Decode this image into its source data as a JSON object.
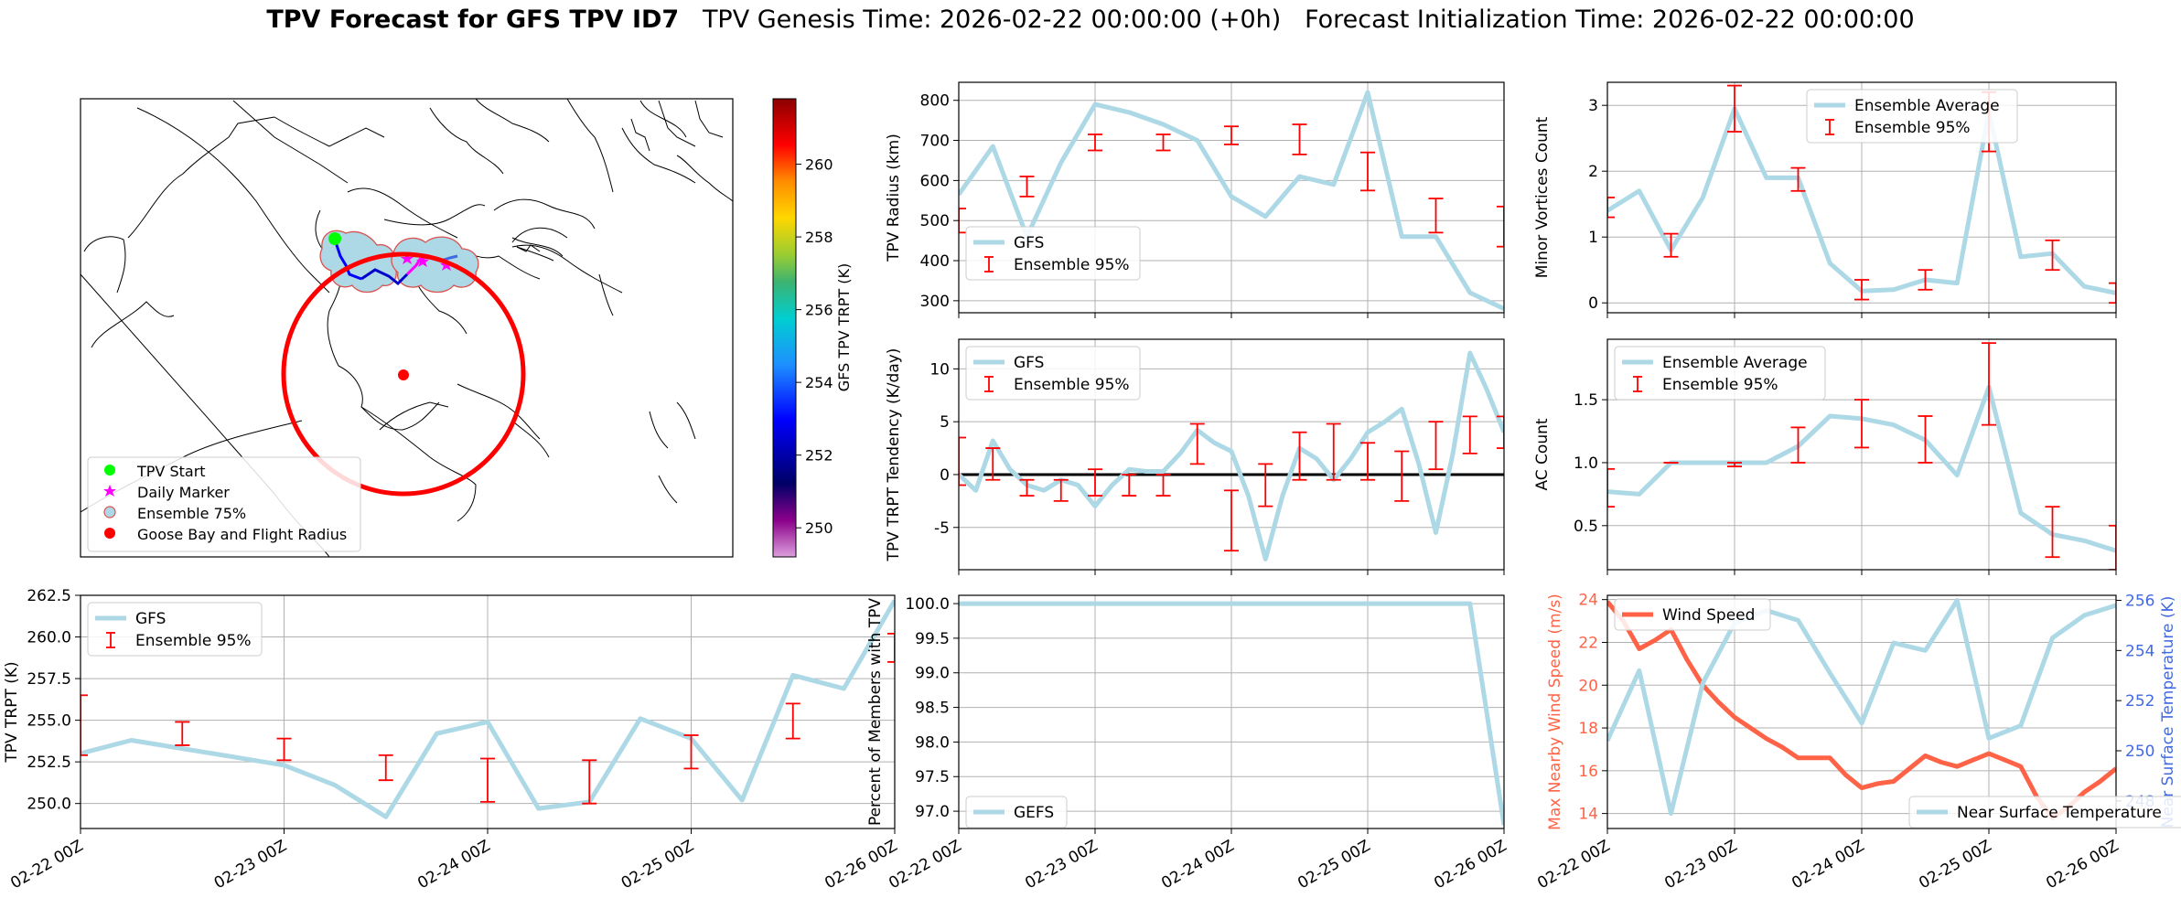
{
  "header": {
    "title_bold": "TPV Forecast for GFS TPV ID7",
    "title_genesis": "TPV Genesis Time: 2026-02-22 00:00:00 (+0h)",
    "title_init": "Forecast Initialization Time: 2026-02-22 00:00:00"
  },
  "colors": {
    "gfs_line": "#add8e6",
    "ensemble_err": "#ff0000",
    "wind_line": "#ff6347",
    "wind_axis": "#ff6347",
    "temp_axis": "#4169e1",
    "zero_line": "#000000",
    "flight_radius": "#ff0000",
    "tpv_start": "#00ff00",
    "daily_marker": "#ff00ff"
  },
  "map": {
    "legend": [
      {
        "label": "TPV Start",
        "marker": "green-circle"
      },
      {
        "label": "Daily Marker",
        "marker": "magenta-star"
      },
      {
        "label": "Ensemble 75%",
        "marker": "lightblue-circle"
      },
      {
        "label": "Goose Bay and Flight Radius",
        "marker": "red-circle"
      }
    ],
    "colorbar": {
      "label": "GFS TPV TRPT (K)",
      "ticks": [
        "250",
        "252",
        "254",
        "256",
        "258",
        "260"
      ],
      "range": [
        249.2,
        261.8
      ]
    }
  },
  "chart_data": [
    {
      "id": "radius",
      "type": "line",
      "ylabel": "TPV Radius (km)",
      "ylim": [
        270,
        845
      ],
      "yticks": [
        300,
        400,
        500,
        600,
        700,
        800
      ],
      "xlim": [
        0,
        4
      ],
      "xticks": [
        "02-22 00Z",
        "02-23 00Z",
        "02-24 00Z",
        "02-25 00Z",
        "02-26 00Z"
      ],
      "grid": true,
      "legend_position": "lower-left",
      "series": [
        {
          "name": "GFS",
          "x": [
            0,
            0.25,
            0.5,
            0.75,
            1.0,
            1.25,
            1.5,
            1.75,
            2.0,
            2.25,
            2.5,
            2.75,
            3.0,
            3.25,
            3.5,
            3.75,
            4.0
          ],
          "y": [
            565,
            685,
            460,
            645,
            790,
            770,
            740,
            700,
            560,
            510,
            610,
            590,
            820,
            460,
            460,
            320,
            280
          ]
        }
      ],
      "errorbars": {
        "name": "Ensemble 95%",
        "x": [
          0,
          0.5,
          1.0,
          1.5,
          2.0,
          2.5,
          3.0,
          3.5,
          4.0
        ],
        "low": [
          470,
          560,
          675,
          675,
          690,
          665,
          575,
          470,
          435
        ],
        "high": [
          530,
          610,
          715,
          715,
          735,
          740,
          670,
          555,
          535
        ]
      }
    },
    {
      "id": "minor_vortices",
      "type": "line",
      "ylabel": "Minor Vortices Count",
      "ylim": [
        -0.15,
        3.35
      ],
      "yticks": [
        0,
        1,
        2,
        3
      ],
      "xlim": [
        0,
        4
      ],
      "xticks": [
        "02-22 00Z",
        "02-23 00Z",
        "02-24 00Z",
        "02-25 00Z",
        "02-26 00Z"
      ],
      "grid": true,
      "legend_position": "upper-center",
      "series": [
        {
          "name": "Ensemble Average",
          "x": [
            0,
            0.25,
            0.5,
            0.75,
            1.0,
            1.25,
            1.5,
            1.75,
            2.0,
            2.25,
            2.5,
            2.75,
            3.0,
            3.25,
            3.5,
            3.75,
            4.0
          ],
          "y": [
            1.4,
            1.7,
            0.8,
            1.6,
            2.95,
            1.9,
            1.9,
            0.6,
            0.18,
            0.2,
            0.35,
            0.3,
            2.9,
            0.7,
            0.75,
            0.25,
            0.15
          ]
        }
      ],
      "errorbars": {
        "name": "Ensemble 95%",
        "x": [
          0,
          0.5,
          1.0,
          1.5,
          2.0,
          2.5,
          3.0,
          3.5,
          4.0
        ],
        "low": [
          1.3,
          0.7,
          2.6,
          1.7,
          0.05,
          0.2,
          2.3,
          0.5,
          0.0
        ],
        "high": [
          1.6,
          1.05,
          3.3,
          2.05,
          0.35,
          0.5,
          3.2,
          0.95,
          0.3
        ]
      }
    },
    {
      "id": "tendency",
      "type": "line",
      "ylabel": "TPV TRPT Tendency (K/day)",
      "ylim": [
        -9,
        12.8
      ],
      "yticks": [
        -5,
        0,
        5,
        10
      ],
      "xlim": [
        0,
        4
      ],
      "xticks": [
        "02-22 00Z",
        "02-23 00Z",
        "02-24 00Z",
        "02-25 00Z",
        "02-26 00Z"
      ],
      "grid": true,
      "legend_position": "upper-left",
      "zero_line": 0,
      "series": [
        {
          "name": "GFS",
          "x": [
            0,
            0.125,
            0.25,
            0.375,
            0.5,
            0.625,
            0.75,
            0.875,
            1.0,
            1.125,
            1.25,
            1.375,
            1.5,
            1.625,
            1.75,
            1.875,
            2.0,
            2.125,
            2.25,
            2.375,
            2.5,
            2.625,
            2.75,
            2.875,
            3.0,
            3.125,
            3.25,
            3.375,
            3.5,
            3.625,
            3.75,
            3.875,
            4.0
          ],
          "y": [
            0,
            -1.5,
            3.2,
            0.5,
            -1,
            -1.5,
            -0.5,
            -1,
            -3,
            -1,
            0.5,
            0.3,
            0.3,
            2,
            4.2,
            3,
            2.2,
            -2,
            -8,
            -2,
            2.5,
            1.5,
            -0.5,
            1.5,
            4,
            5,
            6.2,
            1,
            -5.5,
            2,
            11.5,
            8,
            4
          ]
        }
      ],
      "errorbars": {
        "name": "Ensemble 95%",
        "x": [
          0,
          0.25,
          0.5,
          0.75,
          1.0,
          1.25,
          1.5,
          1.75,
          2.0,
          2.25,
          2.5,
          2.75,
          3.0,
          3.25,
          3.5,
          3.75,
          4.0
        ],
        "low": [
          -1,
          -0.5,
          -2,
          -2.5,
          -2,
          -2,
          -2,
          1,
          -7.2,
          -3,
          -0.5,
          -0.5,
          -0.5,
          -2.5,
          0.5,
          2,
          2.5
        ],
        "high": [
          3.5,
          2.5,
          -0.5,
          -0.5,
          0.5,
          0,
          0,
          4.8,
          -1.5,
          1,
          4,
          4.8,
          3,
          2.2,
          5,
          5.5,
          5.5
        ]
      }
    },
    {
      "id": "ac_count",
      "type": "line",
      "ylabel": "AC Count",
      "ylim": [
        0.15,
        1.98
      ],
      "yticks": [
        0.5,
        1.0,
        1.5
      ],
      "xlim": [
        0,
        4
      ],
      "xticks": [
        "02-22 00Z",
        "02-23 00Z",
        "02-24 00Z",
        "02-25 00Z",
        "02-26 00Z"
      ],
      "grid": true,
      "legend_position": "upper-left",
      "series": [
        {
          "name": "Ensemble Average",
          "x": [
            0,
            0.25,
            0.5,
            0.75,
            1.0,
            1.25,
            1.5,
            1.75,
            2.0,
            2.25,
            2.5,
            2.75,
            3.0,
            3.25,
            3.5,
            3.75,
            4.0
          ],
          "y": [
            0.77,
            0.75,
            1.0,
            1.0,
            1.0,
            1.0,
            1.13,
            1.37,
            1.35,
            1.3,
            1.18,
            0.9,
            1.6,
            0.6,
            0.43,
            0.38,
            0.3
          ]
        }
      ],
      "errorbars": {
        "name": "Ensemble 95%",
        "x": [
          0,
          0.5,
          1.0,
          1.5,
          2.0,
          2.5,
          3.0,
          3.5,
          4.0
        ],
        "low": [
          0.65,
          1.0,
          0.97,
          1.0,
          1.12,
          1.0,
          1.3,
          0.25,
          0.15
        ],
        "high": [
          0.95,
          1.0,
          1.0,
          1.28,
          1.5,
          1.37,
          1.95,
          0.65,
          0.5
        ]
      }
    },
    {
      "id": "trpt",
      "type": "line",
      "ylabel": "TPV TRPT (K)",
      "ylim": [
        248.5,
        262.5
      ],
      "yticks": [
        250.0,
        252.5,
        255.0,
        257.5,
        260.0,
        262.5
      ],
      "xlim": [
        0,
        4
      ],
      "xticks": [
        "02-22 00Z",
        "02-23 00Z",
        "02-24 00Z",
        "02-25 00Z",
        "02-26 00Z"
      ],
      "grid": true,
      "legend_position": "upper-left",
      "series": [
        {
          "name": "GFS",
          "x": [
            0,
            0.25,
            0.5,
            0.75,
            1.0,
            1.25,
            1.5,
            1.75,
            2.0,
            2.25,
            2.5,
            2.75,
            3.0,
            3.25,
            3.5,
            3.75,
            4.0
          ],
          "y": [
            253.0,
            253.8,
            253.3,
            252.8,
            252.3,
            251.1,
            249.2,
            254.2,
            254.9,
            249.7,
            250.1,
            255.1,
            253.9,
            250.2,
            257.7,
            256.9,
            262.2
          ]
        }
      ],
      "errorbars": {
        "name": "Ensemble 95%",
        "x": [
          0,
          0.5,
          1.0,
          1.5,
          2.0,
          2.5,
          3.0,
          3.5,
          4.0
        ],
        "low": [
          252.9,
          253.5,
          252.6,
          251.4,
          250.1,
          250.0,
          252.1,
          253.9,
          258.5
        ],
        "high": [
          256.5,
          254.9,
          253.9,
          252.9,
          252.7,
          252.6,
          254.1,
          256.0,
          260.2
        ]
      }
    },
    {
      "id": "percent",
      "type": "line",
      "ylabel": "Percent of Members with TPV",
      "ylim": [
        96.75,
        100.12
      ],
      "yticks": [
        97.0,
        97.5,
        98.0,
        98.5,
        99.0,
        99.5,
        100.0
      ],
      "xlim": [
        0,
        4
      ],
      "xticks": [
        "02-22 00Z",
        "02-23 00Z",
        "02-24 00Z",
        "02-25 00Z",
        "02-26 00Z"
      ],
      "grid": true,
      "legend_position": "lower-left",
      "series": [
        {
          "name": "GEFS",
          "x": [
            0,
            3.75,
            4.0
          ],
          "y": [
            100.0,
            100.0,
            96.8
          ]
        }
      ]
    },
    {
      "id": "wind_temp",
      "type": "line",
      "ylabel": "Max Nearby Wind Speed (m/s)",
      "ylabel_right": "Near Surface Temperature (K)",
      "ylim": [
        13.3,
        24.2
      ],
      "yticks": [
        14,
        16,
        18,
        20,
        22,
        24
      ],
      "ylim_right": [
        246.9,
        256.2
      ],
      "yticks_right": [
        248,
        250,
        252,
        254,
        256
      ],
      "xlim": [
        0,
        4
      ],
      "xticks": [
        "02-22 00Z",
        "02-23 00Z",
        "02-24 00Z",
        "02-25 00Z",
        "02-26 00Z"
      ],
      "grid": true,
      "legend_position": "upper-left / lower-right",
      "series": [
        {
          "name": "Wind Speed",
          "axis": "left",
          "x": [
            0,
            0.125,
            0.25,
            0.375,
            0.5,
            0.625,
            0.75,
            0.875,
            1.0,
            1.125,
            1.25,
            1.375,
            1.5,
            1.625,
            1.75,
            1.875,
            2.0,
            2.125,
            2.25,
            2.375,
            2.5,
            2.625,
            2.75,
            2.875,
            3.0,
            3.125,
            3.25,
            3.375,
            3.5,
            3.625,
            3.75,
            3.875,
            4.0
          ],
          "y": [
            23.9,
            23.0,
            21.7,
            22.1,
            22.6,
            21.2,
            20.0,
            19.2,
            18.5,
            18.0,
            17.5,
            17.1,
            16.6,
            16.6,
            16.6,
            15.8,
            15.2,
            15.4,
            15.5,
            16.1,
            16.7,
            16.4,
            16.2,
            16.5,
            16.8,
            16.5,
            16.2,
            14.8,
            13.8,
            14.3,
            15.0,
            15.5,
            16.1
          ]
        },
        {
          "name": "Near Surface Temperature",
          "axis": "right",
          "x": [
            0,
            0.25,
            0.5,
            0.75,
            1.0,
            1.25,
            1.5,
            1.75,
            2.0,
            2.25,
            2.5,
            2.75,
            3.0,
            3.25,
            3.5,
            3.75,
            4.0
          ],
          "y": [
            250.4,
            253.2,
            247.5,
            252.7,
            255.1,
            255.6,
            255.2,
            253.1,
            251.1,
            254.3,
            254.0,
            256.0,
            250.5,
            251.0,
            254.5,
            255.4,
            255.8
          ]
        }
      ]
    }
  ]
}
